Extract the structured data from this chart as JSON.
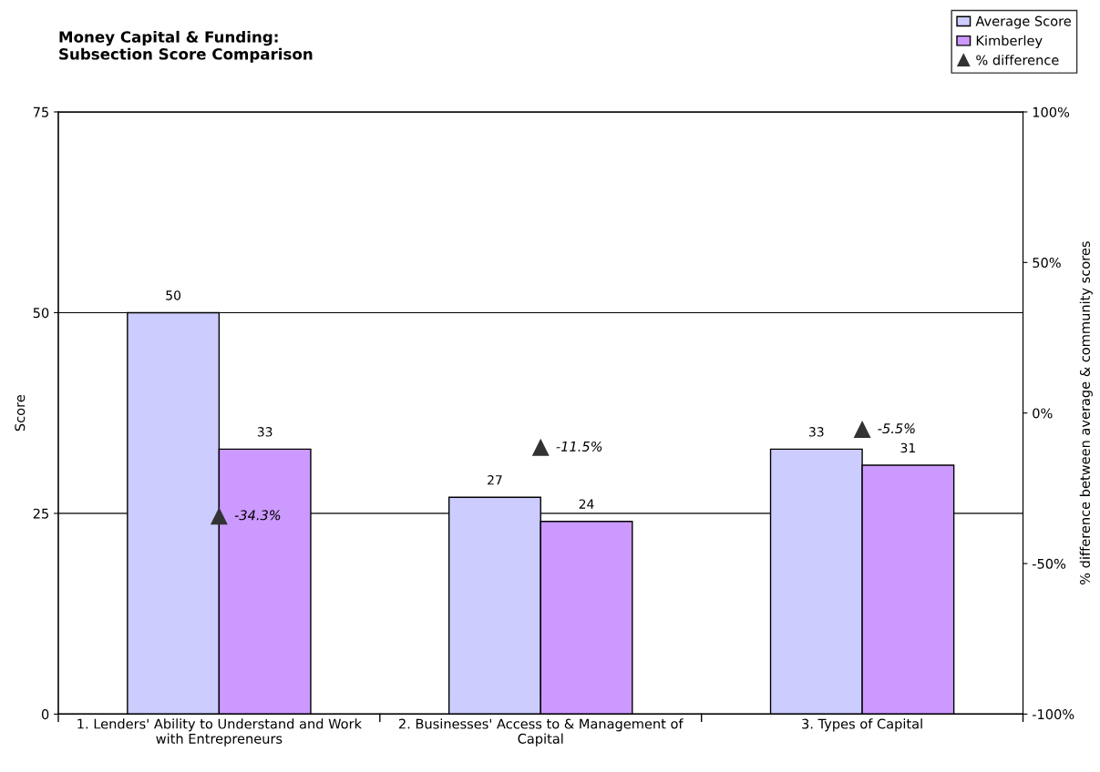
{
  "chart_data": {
    "type": "bar",
    "title": "Money Capital & Funding:\nSubsection Score Comparison",
    "ylabel": "Score",
    "y2label": "% difference between average & community scores",
    "categories": [
      "1. Lenders' Ability to Understand and Work with Entrepreneurs",
      "2. Businesses' Access to & Management of Capital",
      "3. Types of Capital"
    ],
    "series": [
      {
        "name": "Average Score",
        "color": "#ccccff",
        "values": [
          50,
          27,
          33
        ]
      },
      {
        "name": "Kimberley",
        "color": "#cc99ff",
        "values": [
          33,
          24,
          31
        ]
      },
      {
        "name": "% difference",
        "type": "scatter",
        "axis": "y2",
        "marker": "triangle",
        "color": "#333333",
        "values": [
          -34.3,
          -11.5,
          -5.5
        ],
        "value_labels": [
          "-34.3%",
          "-11.5%",
          "-5.5%"
        ]
      }
    ],
    "data_labels": true,
    "ylim": [
      0,
      75
    ],
    "yticks": [
      0,
      25,
      50,
      75
    ],
    "y2lim": [
      -100,
      100
    ],
    "y2ticks": [
      {
        "value": -100,
        "label": "-100%"
      },
      {
        "value": -50,
        "label": "-50%"
      },
      {
        "value": 0,
        "label": "0%"
      },
      {
        "value": 50,
        "label": "50%"
      },
      {
        "value": 100,
        "label": "100%"
      }
    ],
    "grid": "y",
    "legend": "top right"
  }
}
